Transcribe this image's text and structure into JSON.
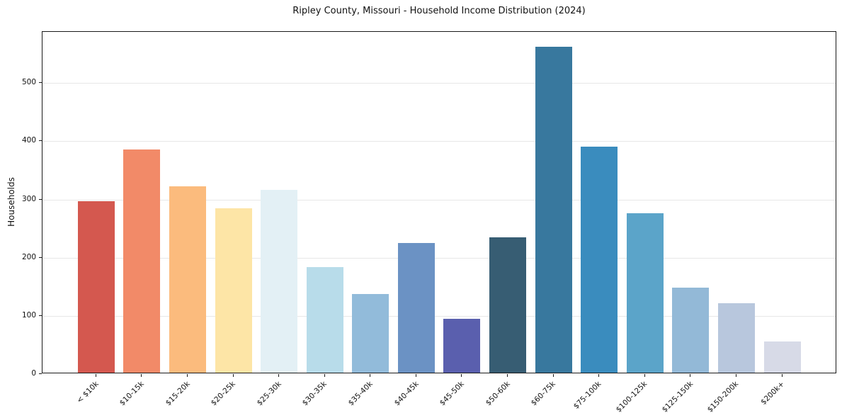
{
  "chart_data": {
    "type": "bar",
    "title": "Ripley County, Missouri - Household Income Distribution (2024)",
    "xlabel": "",
    "ylabel": "Households",
    "categories": [
      "< $10k",
      "$10-15k",
      "$15-20k",
      "$20-25k",
      "$25-30k",
      "$30-35k",
      "$35-40k",
      "$40-45k",
      "$45-50k",
      "$50-60k",
      "$60-75k",
      "$75-100k",
      "$100-125k",
      "$125-150k",
      "$150-200k",
      "$200k+"
    ],
    "values": [
      295,
      384,
      320,
      283,
      314,
      182,
      135,
      223,
      92,
      233,
      560,
      388,
      274,
      146,
      119,
      54
    ],
    "bar_colors": [
      "#d4584f",
      "#f28a68",
      "#fbbb7d",
      "#fde5a6",
      "#e3f0f5",
      "#b8dcea",
      "#92bbda",
      "#6b92c4",
      "#5a5fae",
      "#375d73",
      "#38789e",
      "#3a8cbe",
      "#5ba4c9",
      "#93b9d7",
      "#b8c7dd",
      "#d7dae7"
    ],
    "yticks": [
      0,
      100,
      200,
      300,
      400,
      500
    ],
    "ylim": [
      0,
      588
    ],
    "grid": true,
    "legend": "none"
  }
}
